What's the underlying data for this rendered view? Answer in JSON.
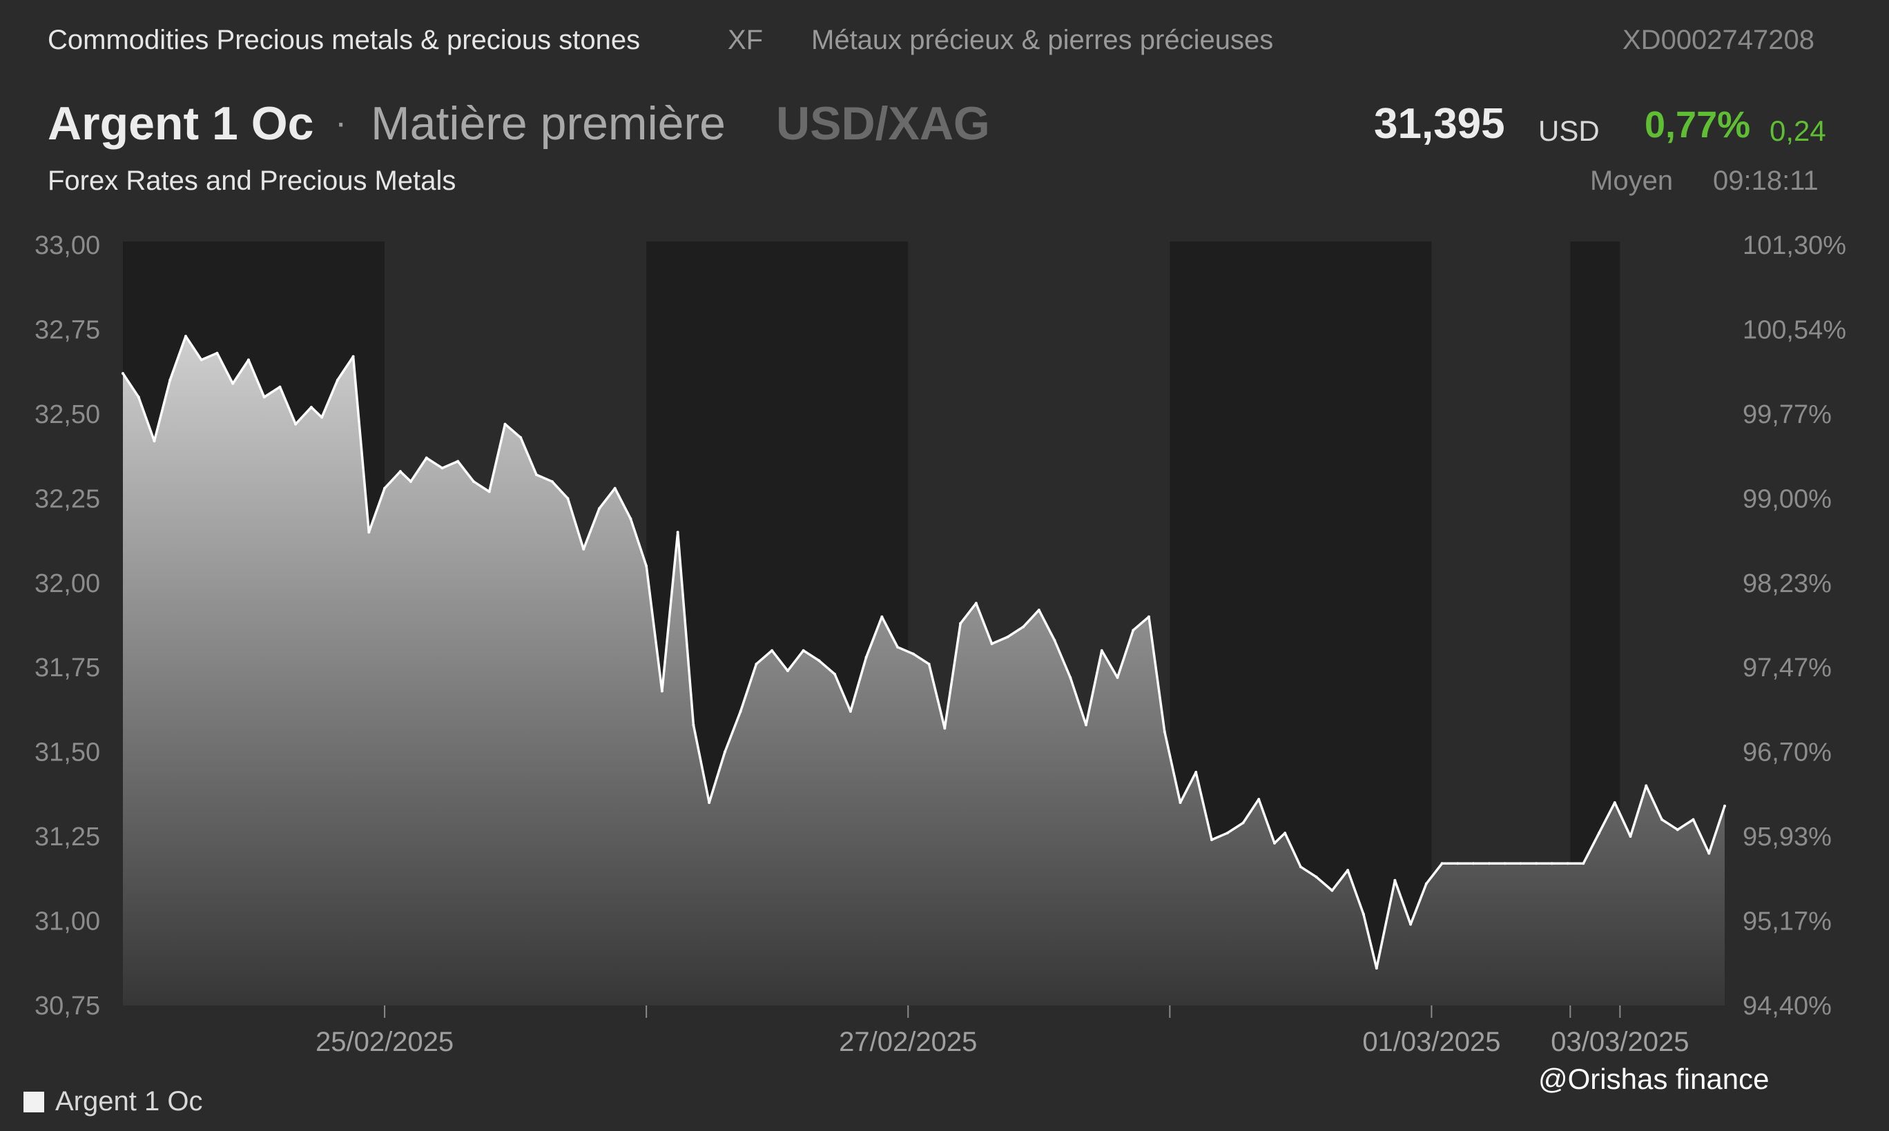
{
  "header": {
    "category": "Commodities Precious metals & precious stones",
    "exchange": "XF",
    "category_fr": "Métaux précieux & pierres précieuses",
    "isin": "XD0002747208"
  },
  "instrument": {
    "name": "Argent 1 Oc",
    "separator": "·",
    "type": "Matière première",
    "pair": "USD/XAG",
    "source": "Forex Rates and Precious Metals"
  },
  "quote": {
    "price": "31,395",
    "currency": "USD",
    "change_pct": "0,77%",
    "change_abs": "0,24",
    "price_type": "Moyen",
    "time": "09:18:11",
    "positive_color": "#5fbe34"
  },
  "legend": {
    "label": "Argent 1 Oc",
    "swatch_color": "#f2f2f2"
  },
  "watermark": "@Orishas finance",
  "chart_data": {
    "type": "area",
    "series": [
      {
        "name": "Argent 1 Oc",
        "x": [
          0,
          0.3,
          0.6,
          0.9,
          1.2,
          1.5,
          1.8,
          2.1,
          2.4,
          2.7,
          3.0,
          3.3,
          3.6,
          3.8,
          4.1,
          4.4,
          4.7,
          5.0,
          5.3,
          5.5,
          5.8,
          6.1,
          6.4,
          6.7,
          7.0,
          7.3,
          7.6,
          7.9,
          8.2,
          8.5,
          8.8,
          9.1,
          9.4,
          9.7,
          10.0,
          10.3,
          10.6,
          10.9,
          11.2,
          11.5,
          11.8,
          12.1,
          12.4,
          12.7,
          13.0,
          13.3,
          13.6,
          13.9,
          14.2,
          14.5,
          14.8,
          15.1,
          15.4,
          15.7,
          16.0,
          16.3,
          16.6,
          16.9,
          17.2,
          17.5,
          17.8,
          18.1,
          18.4,
          18.7,
          19.0,
          19.3,
          19.6,
          19.9,
          20.2,
          20.5,
          20.8,
          21.1,
          21.4,
          21.7,
          22.0,
          22.2,
          22.5,
          22.8,
          23.1,
          23.4,
          23.7,
          23.95,
          24.3,
          24.6,
          24.9,
          25.2,
          25.5,
          25.8,
          26.1,
          26.4,
          26.7,
          27.0,
          27.3,
          27.6,
          27.9,
          28.2,
          28.5,
          28.8,
          29.1,
          29.4,
          29.7,
          30.0,
          30.3,
          30.6
        ],
        "values": [
          32.62,
          32.55,
          32.42,
          32.6,
          32.73,
          32.66,
          32.68,
          32.59,
          32.66,
          32.55,
          32.58,
          32.47,
          32.52,
          32.49,
          32.6,
          32.67,
          32.15,
          32.28,
          32.33,
          32.3,
          32.37,
          32.34,
          32.36,
          32.3,
          32.27,
          32.47,
          32.43,
          32.32,
          32.3,
          32.25,
          32.1,
          32.22,
          32.28,
          32.19,
          32.05,
          31.68,
          32.15,
          31.58,
          31.35,
          31.5,
          31.62,
          31.76,
          31.8,
          31.74,
          31.8,
          31.77,
          31.73,
          31.62,
          31.78,
          31.9,
          31.81,
          31.79,
          31.76,
          31.57,
          31.88,
          31.94,
          31.82,
          31.84,
          31.87,
          31.92,
          31.83,
          31.72,
          31.58,
          31.8,
          31.72,
          31.86,
          31.9,
          31.56,
          31.35,
          31.44,
          31.24,
          31.26,
          31.29,
          31.36,
          31.23,
          31.26,
          31.16,
          31.13,
          31.09,
          31.15,
          31.02,
          30.86,
          31.12,
          30.99,
          31.11,
          31.17,
          31.17,
          31.17,
          31.17,
          31.17,
          31.17,
          31.17,
          31.17,
          31.17,
          31.17,
          31.26,
          31.35,
          31.25,
          31.4,
          31.3,
          31.27,
          31.3,
          31.2,
          31.34
        ],
        "color": "#ffffff"
      }
    ],
    "left_axis": {
      "ylim": [
        30.75,
        33.0
      ],
      "ticks": [
        "33,00",
        "32,75",
        "32,50",
        "32,25",
        "32,00",
        "31,75",
        "31,50",
        "31,25",
        "31,00",
        "30,75"
      ]
    },
    "right_axis": {
      "ticks": [
        "101,30%",
        "100,54%",
        "99,77%",
        "99,00%",
        "98,23%",
        "97,47%",
        "96,70%",
        "95,93%",
        "95,17%",
        "94,40%"
      ]
    },
    "x_axis": {
      "range": [
        0,
        30.6
      ],
      "labels": [
        {
          "x": 5.0,
          "text": "25/02/2025"
        },
        {
          "x": 15.0,
          "text": "27/02/2025"
        },
        {
          "x": 25.0,
          "text": "01/03/2025"
        },
        {
          "x": 28.6,
          "text": "03/03/2025"
        }
      ],
      "minor_ticks": [
        10.0,
        20.0,
        27.65
      ]
    },
    "shaded_periods": [
      [
        0,
        5.0
      ],
      [
        10.0,
        15.0
      ],
      [
        20.0,
        25.0
      ],
      [
        27.65,
        28.6
      ]
    ],
    "grid": false,
    "legend_position": "bottom-left"
  }
}
